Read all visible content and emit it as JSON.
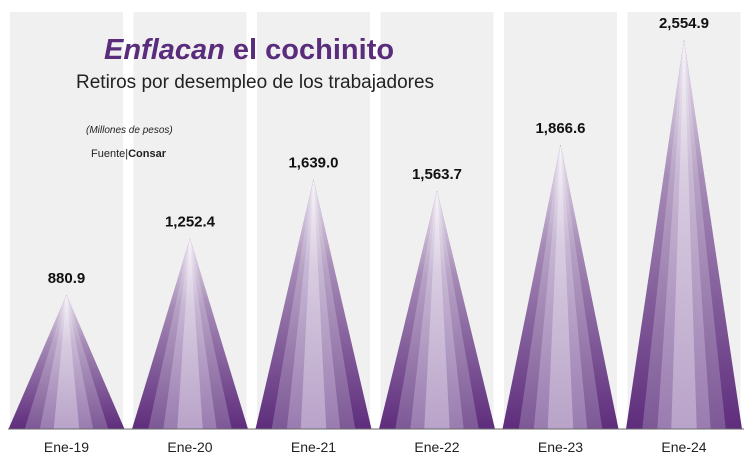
{
  "header": {
    "title_part1": "Enflacan",
    "title_part2": " el cochinito",
    "subtitle": "Retiros por desempleo de los trabajadores",
    "units": "(Millones de pesos)",
    "source_label": "Fuente",
    "source_sep": "|",
    "source_name": "Consar"
  },
  "colors": {
    "column_bg": "#f0f0f0",
    "bar_dark": "#5e2d7c",
    "bar_light": "#ffffff",
    "title": "#5a2d7c"
  },
  "chart_data": {
    "type": "bar",
    "title": "Enflacan el cochinito",
    "subtitle": "Retiros por desempleo de los trabajadores",
    "categories": [
      "Ene-19",
      "Ene-20",
      "Ene-21",
      "Ene-22",
      "Ene-23",
      "Ene-24"
    ],
    "values": [
      880.9,
      1252.4,
      1639.0,
      1563.7,
      1866.6,
      2554.9
    ],
    "value_labels": [
      "880.9",
      "1,252.4",
      "1,639.0",
      "1,563.7",
      "1,866.6",
      "2,554.9"
    ],
    "ylabel": "(Millones de pesos)",
    "ylim": [
      0,
      2554.9
    ],
    "bar_shape": "triangle",
    "grid": false,
    "legend": "none"
  }
}
